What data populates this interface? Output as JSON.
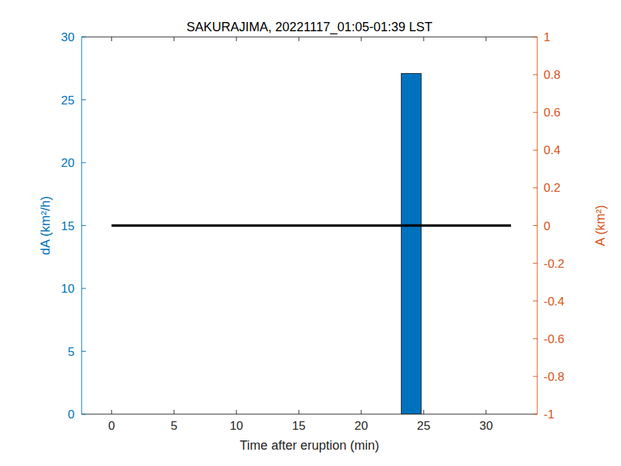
{
  "chart_data": {
    "type": "bar",
    "title": "SAKURAJIMA, 20221117_01:05-01:39 LST",
    "x_label": "Time after eruption (min)",
    "y_label": "dA (km²/h)",
    "y2_label": "A (km²)",
    "x": [
      0,
      2,
      4,
      6,
      8,
      10,
      12,
      14,
      16,
      18,
      20,
      22,
      24,
      26,
      28,
      30,
      32
    ],
    "series": [
      {
        "type": "bar",
        "color": "#0072BD",
        "values": [
          0,
          0,
          0,
          0,
          0,
          0,
          0,
          0,
          0,
          0,
          0,
          0,
          27.1,
          0,
          0,
          0,
          0
        ]
      },
      {
        "type": "line",
        "color": "#000000",
        "axis": "y2",
        "values": [
          0,
          0,
          0,
          0,
          0,
          0,
          0,
          0,
          0,
          0,
          0,
          0,
          0,
          0,
          0,
          0,
          0
        ]
      }
    ],
    "xlim": [
      -2.4,
      34.1
    ],
    "xticks": [
      0,
      5,
      10,
      15,
      20,
      25,
      30
    ],
    "ylim": [
      0,
      30
    ],
    "yticks": [
      0,
      5,
      10,
      15,
      20,
      25,
      30
    ],
    "y2lim": [
      -1,
      1
    ],
    "y2ticks": [
      -1,
      -0.8,
      -0.6,
      -0.4,
      -0.2,
      0,
      0.2,
      0.4,
      0.6,
      0.8,
      1
    ],
    "y_color": "#0072BD",
    "y2_color": "#D95319",
    "grid": false
  }
}
